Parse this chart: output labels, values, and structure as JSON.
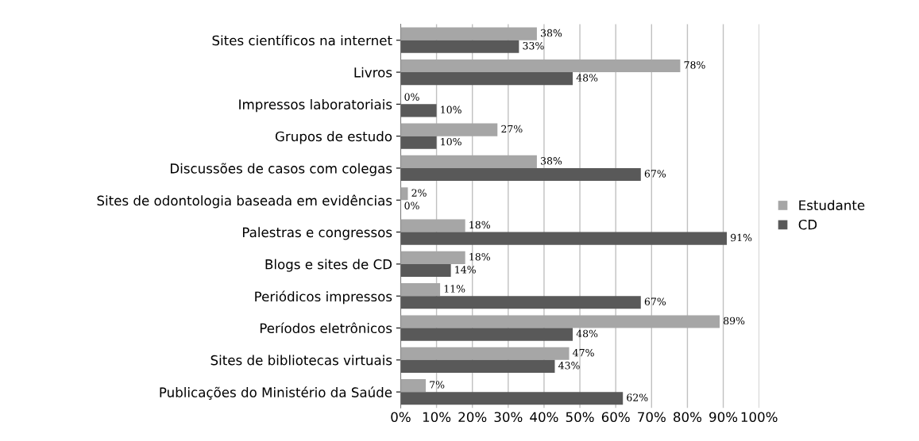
{
  "chart_data": {
    "type": "bar",
    "orientation": "horizontal",
    "categories": [
      "Sites científicos na internet",
      "Livros",
      "Impressos laboratoriais",
      "Grupos de estudo",
      "Discussões de casos com colegas",
      "Sites de odontologia baseada em evidências",
      "Palestras e congressos",
      "Blogs e sites de CD",
      "Periódicos impressos",
      "Períodos eletrônicos",
      "Sites de bibliotecas virtuais",
      "Publicações do Ministério da Saúde"
    ],
    "series": [
      {
        "name": "Estudante",
        "color": "#a6a6a6",
        "values": [
          38,
          78,
          0,
          27,
          38,
          2,
          18,
          18,
          11,
          89,
          47,
          7
        ],
        "value_labels": [
          "38%",
          "78%",
          "0%",
          "27%",
          "38%",
          "2%",
          "18%",
          "18%",
          "11%",
          "89%",
          "47%",
          "7%"
        ]
      },
      {
        "name": "CD",
        "color": "#595959",
        "values": [
          33,
          48,
          10,
          10,
          67,
          0,
          91,
          14,
          67,
          48,
          43,
          62
        ],
        "value_labels": [
          "33%",
          "48%",
          "10%",
          "10%",
          "67%",
          "0%",
          "91%",
          "14%",
          "67%",
          "48%",
          "43%",
          "62%"
        ]
      }
    ],
    "xlim": [
      0,
      100
    ],
    "xticks": [
      {
        "value": 0,
        "label": "0%"
      },
      {
        "value": 10,
        "label": "10%"
      },
      {
        "value": 20,
        "label": "20%"
      },
      {
        "value": 30,
        "label": "30%"
      },
      {
        "value": 40,
        "label": "40%"
      },
      {
        "value": 50,
        "label": "50%"
      },
      {
        "value": 60,
        "label": "60%"
      },
      {
        "value": 70,
        "label": "70%"
      },
      {
        "value": 80,
        "label": "80%"
      },
      {
        "value": 90,
        "label": "90%"
      },
      {
        "value": 100,
        "label": "100%"
      }
    ],
    "grid": "x",
    "legend": "right"
  }
}
